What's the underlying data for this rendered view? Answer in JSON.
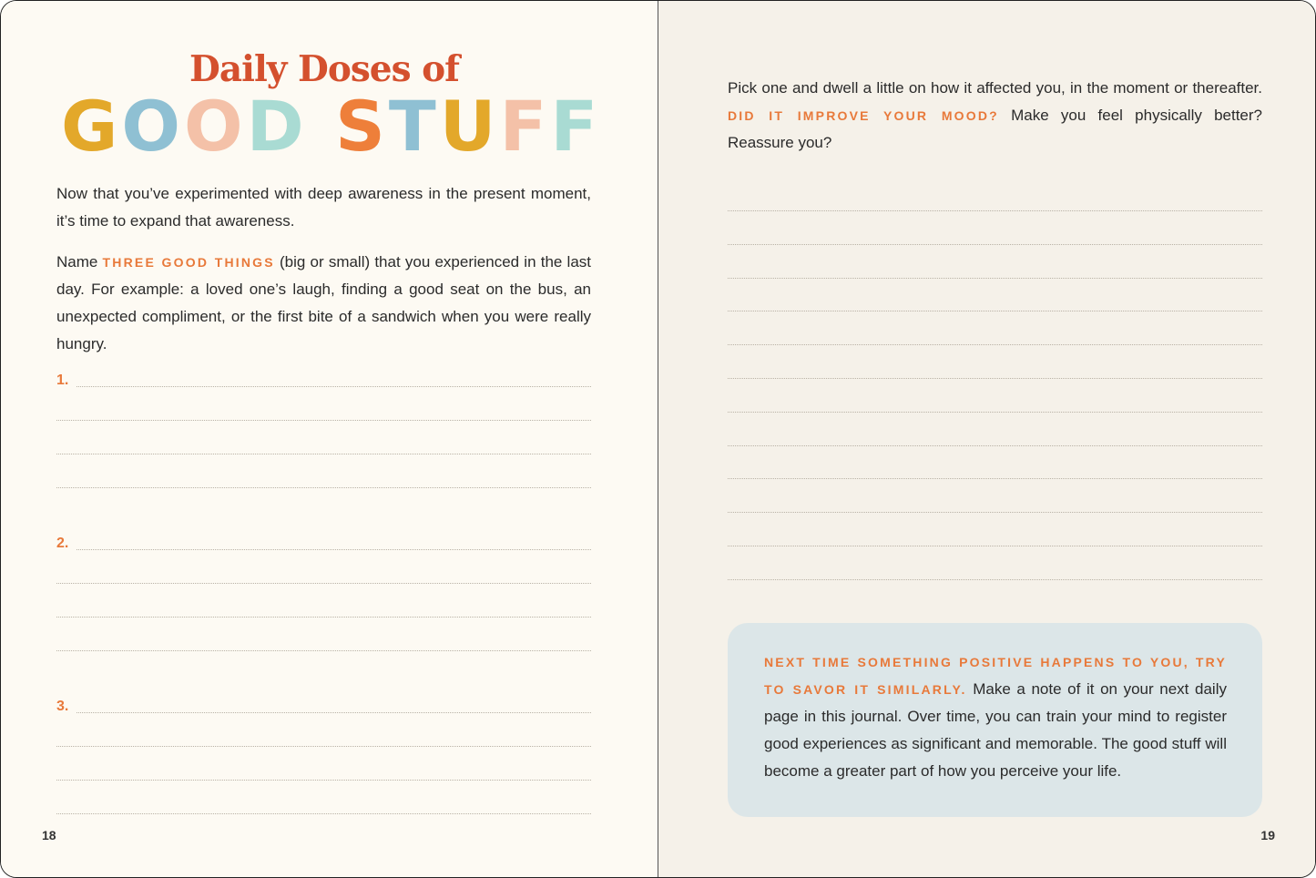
{
  "left_page": {
    "title_line1": "Daily Doses of",
    "title_line2_letters": [
      "G",
      "O",
      "O",
      "D",
      " ",
      "S",
      "T",
      "U",
      "F",
      "F"
    ],
    "title_letter_colors": [
      "#e3a82a",
      "#8fc0d3",
      "#f4c1a8",
      "#a9dbd3",
      "",
      "#ee7f3a",
      "#8fc0d3",
      "#e3a82a",
      "#f4c1a8",
      "#a9dbd3"
    ],
    "paragraph1": "Now that you’ve experimented with deep awareness in the present moment, it’s time to expand that awareness.",
    "paragraph2_pre": "Name ",
    "paragraph2_highlight": "THREE GOOD THINGS",
    "paragraph2_post": " (big or small) that you experienced in the last day. For example: a loved one’s laugh, finding a good seat on the bus, an unexpected compliment, or the first bite of a sandwich when you were really hungry.",
    "items": [
      "1.",
      "2.",
      "3."
    ],
    "page_number": "18"
  },
  "right_page": {
    "paragraph_pre": "Pick one and dwell a little on how it affected you, in the moment or thereafter. ",
    "paragraph_highlight": "DID IT IMPROVE YOUR MOOD?",
    "paragraph_post": " Make you feel physically better? Reassure you?",
    "tip_highlight": "NEXT TIME SOMETHING POSITIVE HAPPENS TO YOU, TRY TO SAVOR IT SIMILARLY.",
    "tip_text": " Make a note of it on your next daily page in this journal. Over time, you can train your mind to register good experiences as significant and memorable. The good stuff will become a greater part of how you perceive your life.",
    "page_number": "19"
  },
  "colors": {
    "accent_orange": "#e8793a",
    "title_red": "#d4502e",
    "tip_background": "#dce6e8"
  }
}
